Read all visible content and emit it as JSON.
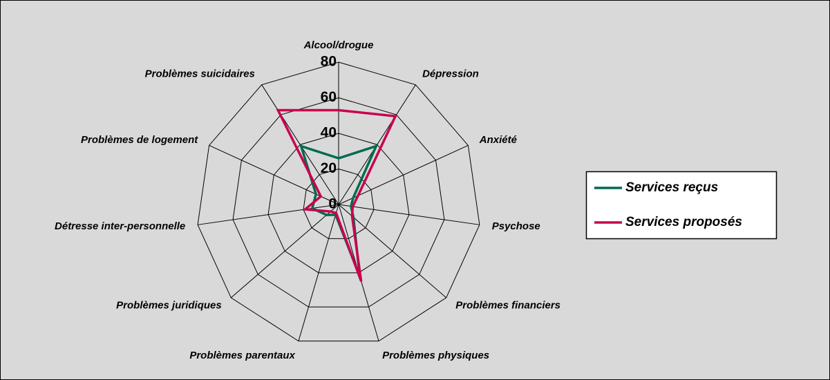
{
  "chart_data": {
    "type": "radar",
    "categories": [
      "Alcool/drogue",
      "Dépression",
      "Anxiété",
      "Psychose",
      "Problèmes financiers",
      "Problèmes physiques",
      "Problèmes parentaux",
      "Problèmes juridiques",
      "Détresse inter-personnelle",
      "Problèmes de logement",
      "Problèmes suicidaires"
    ],
    "series": [
      {
        "name": "Services reçus",
        "color": "#006b4f",
        "values": [
          26,
          39,
          9,
          7,
          11,
          42,
          6,
          9,
          15,
          14,
          39
        ]
      },
      {
        "name": "Services proposés",
        "color": "#c8004e",
        "values": [
          53,
          59,
          12,
          8,
          10,
          45,
          5,
          6,
          19,
          11,
          63
        ]
      }
    ],
    "ylim": [
      0,
      80
    ],
    "yticks": [
      0,
      20,
      40,
      60,
      80
    ],
    "grid": true,
    "legend": "right"
  }
}
